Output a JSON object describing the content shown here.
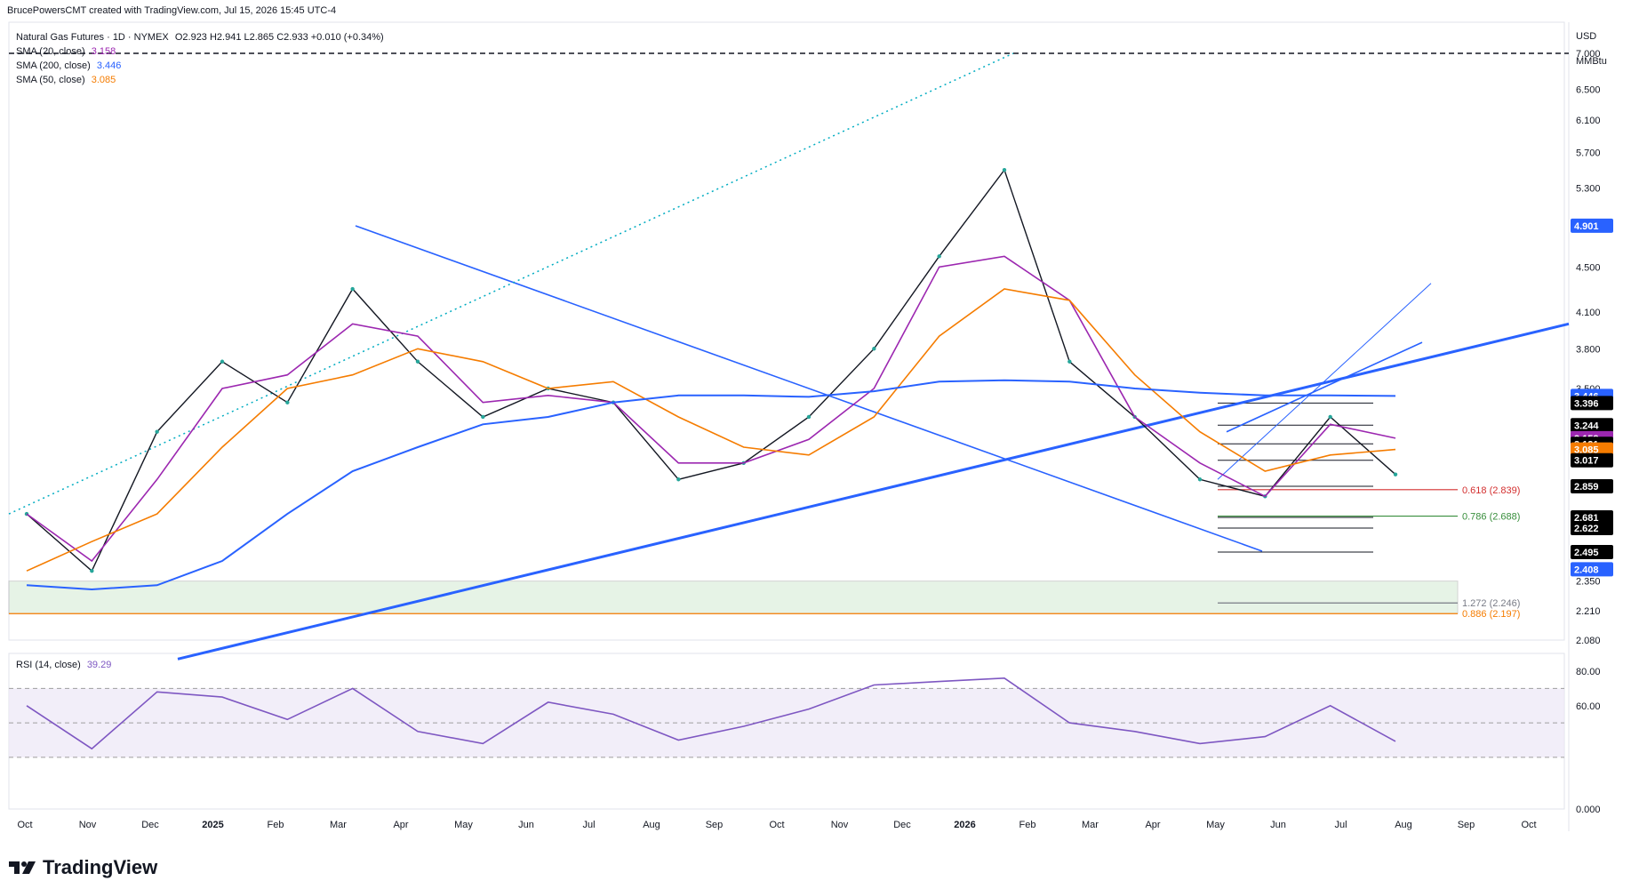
{
  "header": {
    "credit": "BrucePowersCMT created with TradingView.com, Jul 15, 2026 15:45 UTC-4"
  },
  "legend": {
    "symbol": "Natural Gas Futures · 1D · NYMEX",
    "ohlc": "O2.923  H2.941  L2.865  C2.933  +0.010 (+0.34%)",
    "sma20": {
      "label": "SMA (20, close)",
      "value": "3.158",
      "color": "#9c27b0"
    },
    "sma200": {
      "label": "SMA (200, close)",
      "value": "3.446",
      "color": "#2962ff"
    },
    "sma50": {
      "label": "SMA (50, close)",
      "value": "3.085",
      "color": "#f57c00"
    }
  },
  "axis": {
    "unit": "USD",
    "unit2": "MMBtu",
    "price_ticks": [
      "7.000",
      "6.500",
      "6.100",
      "5.700",
      "5.300",
      "4.500",
      "4.100",
      "3.800",
      "3.500",
      "2.350",
      "2.210",
      "2.080"
    ],
    "rsi_ticks": [
      "80.00",
      "60.00",
      "0.000"
    ],
    "time_ticks": [
      "Oct",
      "Nov",
      "Dec",
      "2025",
      "Feb",
      "Mar",
      "Apr",
      "May",
      "Jun",
      "Jul",
      "Aug",
      "Sep",
      "Oct",
      "Nov",
      "Dec",
      "2026",
      "Feb",
      "Mar",
      "Apr",
      "May",
      "Jun",
      "Jul",
      "Aug",
      "Sep",
      "Oct"
    ]
  },
  "price_labels": [
    {
      "text": "4.901",
      "bg": "#2962ff",
      "fg": "#ffffff"
    },
    {
      "text": "3.446",
      "bg": "#2962ff",
      "fg": "#ffffff"
    },
    {
      "text": "3.396",
      "bg": "#000000",
      "fg": "#ffffff"
    },
    {
      "text": "3.244",
      "bg": "#000000",
      "fg": "#ffffff"
    },
    {
      "text": "3.158",
      "bg": "#9c27b0",
      "fg": "#ffffff"
    },
    {
      "text": "3.121",
      "bg": "#000000",
      "fg": "#ffffff"
    },
    {
      "text": "3.085",
      "bg": "#f57c00",
      "fg": "#ffffff"
    },
    {
      "text": "3.017",
      "bg": "#000000",
      "fg": "#ffffff"
    },
    {
      "text": "2.859",
      "bg": "#000000",
      "fg": "#ffffff"
    },
    {
      "text": "2.681",
      "bg": "#000000",
      "fg": "#ffffff"
    },
    {
      "text": "2.622",
      "bg": "#000000",
      "fg": "#ffffff"
    },
    {
      "text": "2.495",
      "bg": "#000000",
      "fg": "#ffffff"
    },
    {
      "text": "2.408",
      "bg": "#2962ff",
      "fg": "#ffffff"
    }
  ],
  "fib_labels": [
    {
      "text": "0.618 (2.839)",
      "color": "#d32f2f"
    },
    {
      "text": "0.786 (2.688)",
      "color": "#388e3c"
    },
    {
      "text": "1.272 (2.246)",
      "color": "#787b86"
    },
    {
      "text": "0.886 (2.197)",
      "color": "#f57c00"
    }
  ],
  "rsi": {
    "label": "RSI (14, close)",
    "value": "39.29",
    "color": "#7e57c2"
  },
  "brand": {
    "name": "TradingView"
  },
  "chart_data": {
    "type": "line",
    "title": "Natural Gas Futures · 1D · NYMEX",
    "y_unit": "USD / MMBtu",
    "x": [
      "2024-10",
      "2024-11",
      "2024-12",
      "2025-01",
      "2025-02",
      "2025-03",
      "2025-04",
      "2025-05",
      "2025-06",
      "2025-07",
      "2025-08",
      "2025-09",
      "2025-10",
      "2025-11",
      "2025-12",
      "2026-01",
      "2026-02",
      "2026-03",
      "2026-04",
      "2026-05",
      "2026-06",
      "2026-07"
    ],
    "series": [
      {
        "name": "Natural Gas Futures",
        "values": [
          2.7,
          2.4,
          3.2,
          3.7,
          3.4,
          4.3,
          3.7,
          3.3,
          3.5,
          3.4,
          2.9,
          3.0,
          3.3,
          3.8,
          4.6,
          5.5,
          3.7,
          3.3,
          2.9,
          2.8,
          3.3,
          2.93
        ]
      },
      {
        "name": "SMA (20, close)",
        "values": [
          2.7,
          2.45,
          2.9,
          3.5,
          3.6,
          4.0,
          3.9,
          3.4,
          3.45,
          3.4,
          3.0,
          3.0,
          3.15,
          3.5,
          4.5,
          4.6,
          4.2,
          3.3,
          3.0,
          2.8,
          3.25,
          3.158
        ]
      },
      {
        "name": "SMA (50, close)",
        "values": [
          2.4,
          2.55,
          2.7,
          3.1,
          3.5,
          3.6,
          3.8,
          3.7,
          3.5,
          3.55,
          3.3,
          3.1,
          3.05,
          3.3,
          3.9,
          4.3,
          4.2,
          3.6,
          3.2,
          2.95,
          3.05,
          3.085
        ]
      },
      {
        "name": "SMA (200, close)",
        "values": [
          2.33,
          2.31,
          2.33,
          2.45,
          2.7,
          2.95,
          3.1,
          3.25,
          3.3,
          3.4,
          3.45,
          3.45,
          3.44,
          3.48,
          3.55,
          3.56,
          3.55,
          3.5,
          3.47,
          3.45,
          3.45,
          3.446
        ]
      }
    ],
    "rsi": {
      "name": "RSI (14, close)",
      "values": [
        60,
        35,
        68,
        65,
        52,
        70,
        45,
        38,
        62,
        55,
        40,
        48,
        58,
        72,
        74,
        76,
        50,
        45,
        38,
        42,
        60,
        39.29
      ]
    },
    "horizontal_levels": [
      3.396,
      3.244,
      3.121,
      3.017,
      2.859,
      2.681,
      2.622,
      2.495
    ],
    "fib_levels": [
      {
        "ratio": 0.618,
        "price": 2.839
      },
      {
        "ratio": 0.786,
        "price": 2.688
      },
      {
        "ratio": 1.272,
        "price": 2.246
      },
      {
        "ratio": 0.886,
        "price": 2.197
      }
    ],
    "ylim": [
      2.08,
      7.0
    ],
    "rsi_ylim": [
      0,
      80
    ],
    "log_scale": true,
    "grid": false
  }
}
